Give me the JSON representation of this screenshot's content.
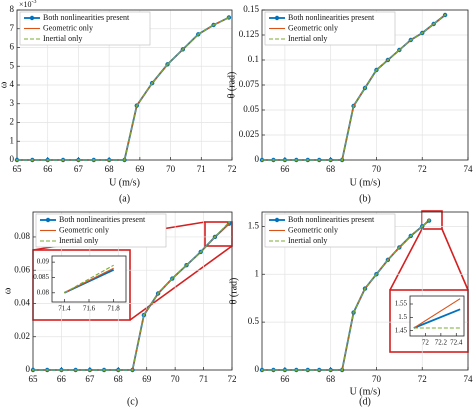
{
  "chart_data": [
    {
      "type": "line",
      "caption": "(a)",
      "xlabel": "U  (m/s)",
      "ylabel": "ω",
      "exponent": {
        "base": "×10",
        "power": "-3"
      },
      "xlim": [
        65,
        72
      ],
      "xticks": [
        65,
        66,
        67,
        68,
        69,
        70,
        71,
        72
      ],
      "ylim": [
        0,
        8
      ],
      "yticks": [
        0,
        1,
        2,
        3,
        4,
        5,
        6,
        7,
        8
      ],
      "grid": true,
      "legend": "upper left",
      "x": [
        65,
        65.5,
        66,
        66.5,
        67,
        67.5,
        68,
        68.5,
        68.9,
        69.4,
        69.9,
        70.4,
        70.9,
        71.4,
        71.9
      ],
      "series": [
        {
          "name": "Both nonlinearities present",
          "color": "#0072bd",
          "marker": "circle",
          "dash": false,
          "values": [
            0,
            0,
            0,
            0,
            0,
            0,
            0,
            0,
            2.9,
            4.1,
            5.1,
            5.9,
            6.7,
            7.2,
            7.6
          ]
        },
        {
          "name": "Geometric only",
          "color": "#d95319",
          "marker": "dot",
          "dash": false,
          "values": [
            0,
            0,
            0,
            0,
            0,
            0,
            0,
            0,
            2.9,
            4.1,
            5.1,
            5.9,
            6.7,
            7.2,
            7.6
          ]
        },
        {
          "name": "Inertial only",
          "color": "#77ac30",
          "marker": "dot",
          "dash": true,
          "values": [
            0,
            0,
            0,
            0,
            0,
            0,
            0,
            0,
            2.9,
            4.1,
            5.1,
            5.9,
            6.7,
            7.2,
            7.6
          ]
        }
      ]
    },
    {
      "type": "line",
      "caption": "(b)",
      "xlabel": "U  (m/s)",
      "ylabel": "θ  (rad)",
      "xlim": [
        65,
        74
      ],
      "xticks": [
        66,
        68,
        70,
        72,
        74
      ],
      "ylim": [
        0,
        0.15
      ],
      "yticks": [
        0,
        0.025,
        0.05,
        0.075,
        0.1,
        0.125,
        0.15
      ],
      "grid": true,
      "legend": "upper left",
      "x": [
        65,
        65.5,
        66,
        66.5,
        67,
        67.5,
        68,
        68.5,
        69,
        69.5,
        70,
        70.5,
        71,
        71.5,
        72,
        72.5,
        73
      ],
      "series": [
        {
          "name": "Both nonlinearities present",
          "color": "#0072bd",
          "marker": "circle",
          "dash": false,
          "values": [
            0,
            0,
            0,
            0,
            0,
            0,
            0,
            0,
            0.054,
            0.072,
            0.09,
            0.1,
            0.11,
            0.12,
            0.127,
            0.136,
            0.145
          ]
        },
        {
          "name": "Geometric only",
          "color": "#d95319",
          "marker": "dot",
          "dash": false,
          "values": [
            0,
            0,
            0,
            0,
            0,
            0,
            0,
            0,
            0.054,
            0.072,
            0.09,
            0.1,
            0.11,
            0.12,
            0.127,
            0.136,
            0.145
          ]
        },
        {
          "name": "Inertial only",
          "color": "#77ac30",
          "marker": "dot",
          "dash": true,
          "values": [
            0,
            0,
            0,
            0,
            0,
            0,
            0,
            0,
            0.054,
            0.072,
            0.09,
            0.1,
            0.11,
            0.12,
            0.127,
            0.136,
            0.145
          ]
        }
      ]
    },
    {
      "type": "line",
      "caption": "(c)",
      "ylabel": "ω",
      "xlim": [
        65,
        72
      ],
      "xticks": [
        65,
        66,
        67,
        68,
        69,
        70,
        71,
        72
      ],
      "ylim": [
        0,
        0.095
      ],
      "yticks": [
        0,
        0.02,
        0.04,
        0.06,
        0.08
      ],
      "grid": true,
      "legend": "upper left",
      "x": [
        65,
        65.5,
        66,
        66.5,
        67,
        67.5,
        68,
        68.5,
        68.9,
        69.4,
        69.9,
        70.4,
        70.9,
        71.4,
        71.9
      ],
      "series": [
        {
          "name": "Both nonlinearities present",
          "color": "#0072bd",
          "marker": "circle",
          "dash": false,
          "values": [
            0,
            0,
            0,
            0,
            0,
            0,
            0,
            0,
            0.033,
            0.046,
            0.055,
            0.063,
            0.071,
            0.08,
            0.088
          ]
        },
        {
          "name": "Geometric only",
          "color": "#d95319",
          "marker": "dot",
          "dash": false,
          "values": [
            0,
            0,
            0,
            0,
            0,
            0,
            0,
            0,
            0.033,
            0.046,
            0.055,
            0.063,
            0.071,
            0.08,
            0.088
          ]
        },
        {
          "name": "Inertial only",
          "color": "#77ac30",
          "marker": "dot",
          "dash": true,
          "values": [
            0,
            0,
            0,
            0,
            0,
            0,
            0,
            0,
            0.033,
            0.046,
            0.055,
            0.063,
            0.071,
            0.08,
            0.089
          ]
        }
      ],
      "inset": {
        "xlim": [
          71.3,
          71.9
        ],
        "xticks": [
          71.4,
          71.6,
          71.8
        ],
        "ylim": [
          0.077,
          0.092
        ],
        "yticks": [
          0.08,
          0.085,
          0.09
        ],
        "x": [
          71.4,
          71.8
        ],
        "series": [
          {
            "color": "#0072bd",
            "dash": false,
            "values": [
              0.08,
              0.0875
            ]
          },
          {
            "color": "#d95319",
            "dash": false,
            "values": [
              0.08,
              0.088
            ]
          },
          {
            "color": "#77ac30",
            "dash": true,
            "values": [
              0.08,
              0.089
            ]
          }
        ]
      }
    },
    {
      "type": "line",
      "caption": "(d)",
      "xlabel": "U  (m/s)",
      "ylabel": "θ  (rad)",
      "xlim": [
        65,
        74
      ],
      "xticks": [
        66,
        68,
        70,
        72,
        74
      ],
      "ylim": [
        0,
        1.65
      ],
      "yticks": [
        0,
        0.5,
        1,
        1.5
      ],
      "grid": true,
      "legend": "upper left",
      "x": [
        65,
        65.5,
        66,
        66.5,
        67,
        67.5,
        68,
        68.5,
        69,
        69.5,
        70,
        70.5,
        71,
        71.5,
        72,
        72.3
      ],
      "series": [
        {
          "name": "Both nonlinearities present",
          "color": "#0072bd",
          "marker": "circle",
          "dash": false,
          "values": [
            0,
            0,
            0,
            0,
            0,
            0,
            0,
            0,
            0.6,
            0.85,
            1,
            1.15,
            1.28,
            1.4,
            1.5,
            1.56
          ]
        },
        {
          "name": "Geometric only",
          "color": "#d95319",
          "marker": "dot",
          "dash": false,
          "values": [
            0,
            0,
            0,
            0,
            0,
            0,
            0,
            0,
            0.6,
            0.85,
            1,
            1.15,
            1.28,
            1.4,
            1.5,
            1.57
          ]
        },
        {
          "name": "Inertial only",
          "color": "#77ac30",
          "marker": "dot",
          "dash": true,
          "values": [
            0,
            0,
            0,
            0,
            0,
            0,
            0,
            0,
            0.6,
            0.85,
            1,
            1.15,
            1.28,
            1.4,
            1.5,
            1.56
          ]
        }
      ],
      "inset": {
        "xlim": [
          71.8,
          72.5
        ],
        "xticks": [
          72,
          72.2,
          72.4
        ],
        "ylim": [
          1.43,
          1.58
        ],
        "yticks": [
          1.45,
          1.5,
          1.55
        ],
        "x": [
          71.85,
          72.45
        ],
        "series": [
          {
            "color": "#0072bd",
            "dash": false,
            "values": [
              1.46,
              1.53
            ]
          },
          {
            "color": "#d95319",
            "dash": false,
            "values": [
              1.46,
              1.57
            ]
          },
          {
            "color": "#77ac30",
            "dash": true,
            "values": [
              1.46,
              1.46
            ]
          }
        ]
      }
    }
  ]
}
